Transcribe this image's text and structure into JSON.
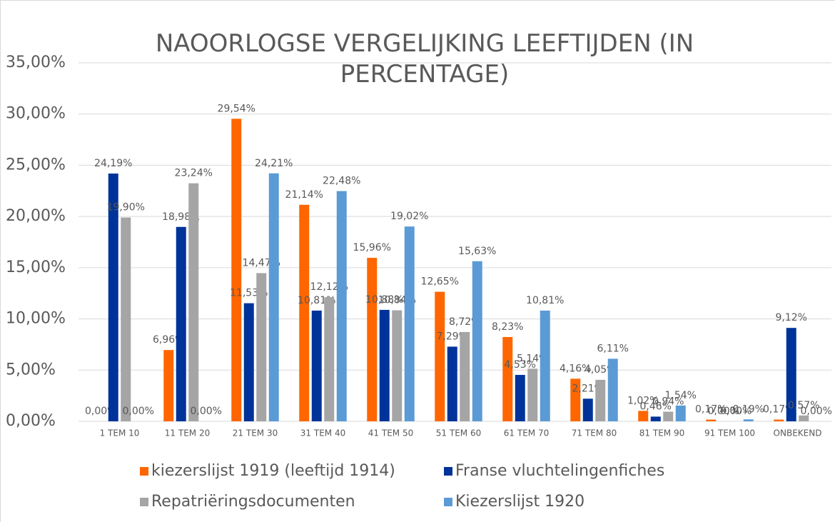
{
  "chart_data": {
    "type": "bar",
    "title": "NAOORLOGSE VERGELIJKING LEEFTIJDEN (IN PERCENTAGE)",
    "categories": [
      "1 TEM 10",
      "11 TEM 20",
      "21 TEM 30",
      "31 TEM 40",
      "41 TEM 50",
      "51 TEM 60",
      "61 TEM 70",
      "71 TEM 80",
      "81 TEM 90",
      "91 TEM 100",
      "ONBEKEND"
    ],
    "series": [
      {
        "name": "kiezerslijst 1919 (leeftijd 1914)",
        "color": "#ff6600",
        "values": [
          0,
          6.96,
          29.54,
          21.14,
          15.96,
          12.65,
          8.23,
          4.16,
          1.02,
          0.17,
          0.17
        ],
        "value_labels": [
          "0,00%",
          "6,96%",
          "29,54%",
          "21,14%",
          "15,96%",
          "12,65%",
          "8,23%",
          "4,16%",
          "1,02%",
          "0,17%",
          "0,17%"
        ]
      },
      {
        "name": "Franse vluchtelingenfiches",
        "color": "#003399",
        "values": [
          24.19,
          18.98,
          11.53,
          10.81,
          10.88,
          7.29,
          4.53,
          2.21,
          0.46,
          0,
          9.12
        ],
        "value_labels": [
          "24,19%",
          "18,98...",
          "11,53%",
          "10,81%",
          "10,88%",
          "7,29%",
          "4,53%",
          "2,21%",
          "0,46%",
          "0,00%",
          "9,12%"
        ]
      },
      {
        "name": "Repatriëringsdocumenten",
        "color": "#a5a5a5",
        "values": [
          19.9,
          23.24,
          14.47,
          12.12,
          10.84,
          8.72,
          5.14,
          4.05,
          0.94,
          0,
          0.57
        ],
        "value_labels": [
          "19,90%",
          "23,24%",
          "14,47%",
          "12,12%",
          "10,84%",
          "8,72%",
          "5,14%",
          "4,05%",
          "0,94%",
          "0,00%",
          "0,57%"
        ]
      },
      {
        "name": "Kiezerslijst 1920",
        "color": "#5b9bd5",
        "values": [
          0,
          0,
          24.21,
          22.48,
          19.02,
          15.63,
          10.81,
          6.11,
          1.54,
          0.19,
          0
        ],
        "value_labels": [
          "0,00%",
          "0,00%",
          "24,21%",
          "22,48%",
          "19,02%",
          "15,63%",
          "10,81%",
          "6,11%",
          "1,54%",
          "0,19%",
          "0,00%"
        ]
      }
    ],
    "ylim": [
      0,
      35
    ],
    "yticks": [
      {
        "value": 0,
        "label": "0,00%"
      },
      {
        "value": 5,
        "label": "5,00%"
      },
      {
        "value": 10,
        "label": "10,00%"
      },
      {
        "value": 15,
        "label": "15,00%"
      },
      {
        "value": 20,
        "label": "20,00%"
      },
      {
        "value": 25,
        "label": "25,00%"
      },
      {
        "value": 30,
        "label": "30,00%"
      },
      {
        "value": 35,
        "label": "35,00%"
      }
    ],
    "grid": true,
    "legend": "bottom"
  }
}
